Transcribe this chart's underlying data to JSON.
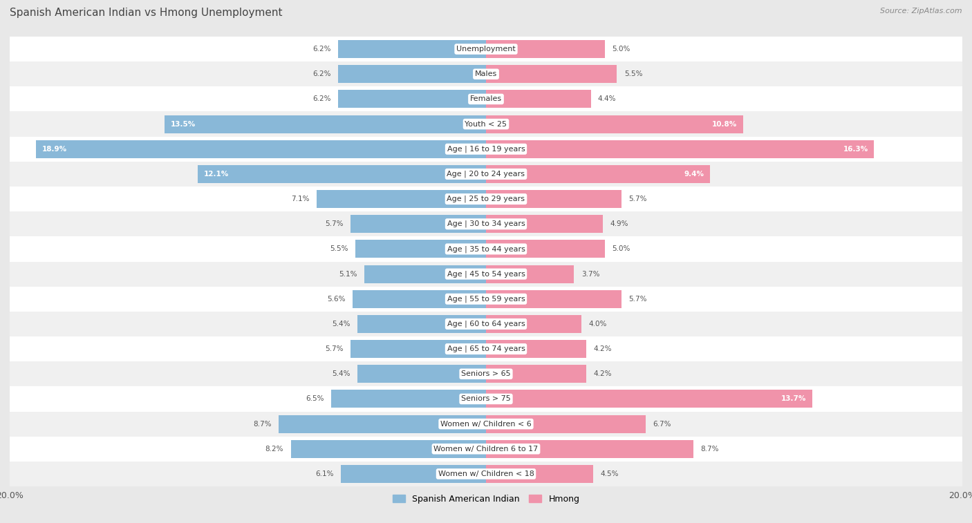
{
  "title": "Spanish American Indian vs Hmong Unemployment",
  "source": "Source: ZipAtlas.com",
  "categories": [
    "Unemployment",
    "Males",
    "Females",
    "Youth < 25",
    "Age | 16 to 19 years",
    "Age | 20 to 24 years",
    "Age | 25 to 29 years",
    "Age | 30 to 34 years",
    "Age | 35 to 44 years",
    "Age | 45 to 54 years",
    "Age | 55 to 59 years",
    "Age | 60 to 64 years",
    "Age | 65 to 74 years",
    "Seniors > 65",
    "Seniors > 75",
    "Women w/ Children < 6",
    "Women w/ Children 6 to 17",
    "Women w/ Children < 18"
  ],
  "left_values": [
    6.2,
    6.2,
    6.2,
    13.5,
    18.9,
    12.1,
    7.1,
    5.7,
    5.5,
    5.1,
    5.6,
    5.4,
    5.7,
    5.4,
    6.5,
    8.7,
    8.2,
    6.1
  ],
  "right_values": [
    5.0,
    5.5,
    4.4,
    10.8,
    16.3,
    9.4,
    5.7,
    4.9,
    5.0,
    3.7,
    5.7,
    4.0,
    4.2,
    4.2,
    13.7,
    6.7,
    8.7,
    4.5
  ],
  "left_color": "#89b8d8",
  "right_color": "#f093aa",
  "left_label": "Spanish American Indian",
  "right_label": "Hmong",
  "max_val": 20.0,
  "bg_color": "#e8e8e8",
  "row_white": "#ffffff",
  "row_light": "#f0f0f0",
  "title_fontsize": 11,
  "cat_fontsize": 8,
  "val_fontsize": 7.5,
  "legend_fontsize": 9
}
